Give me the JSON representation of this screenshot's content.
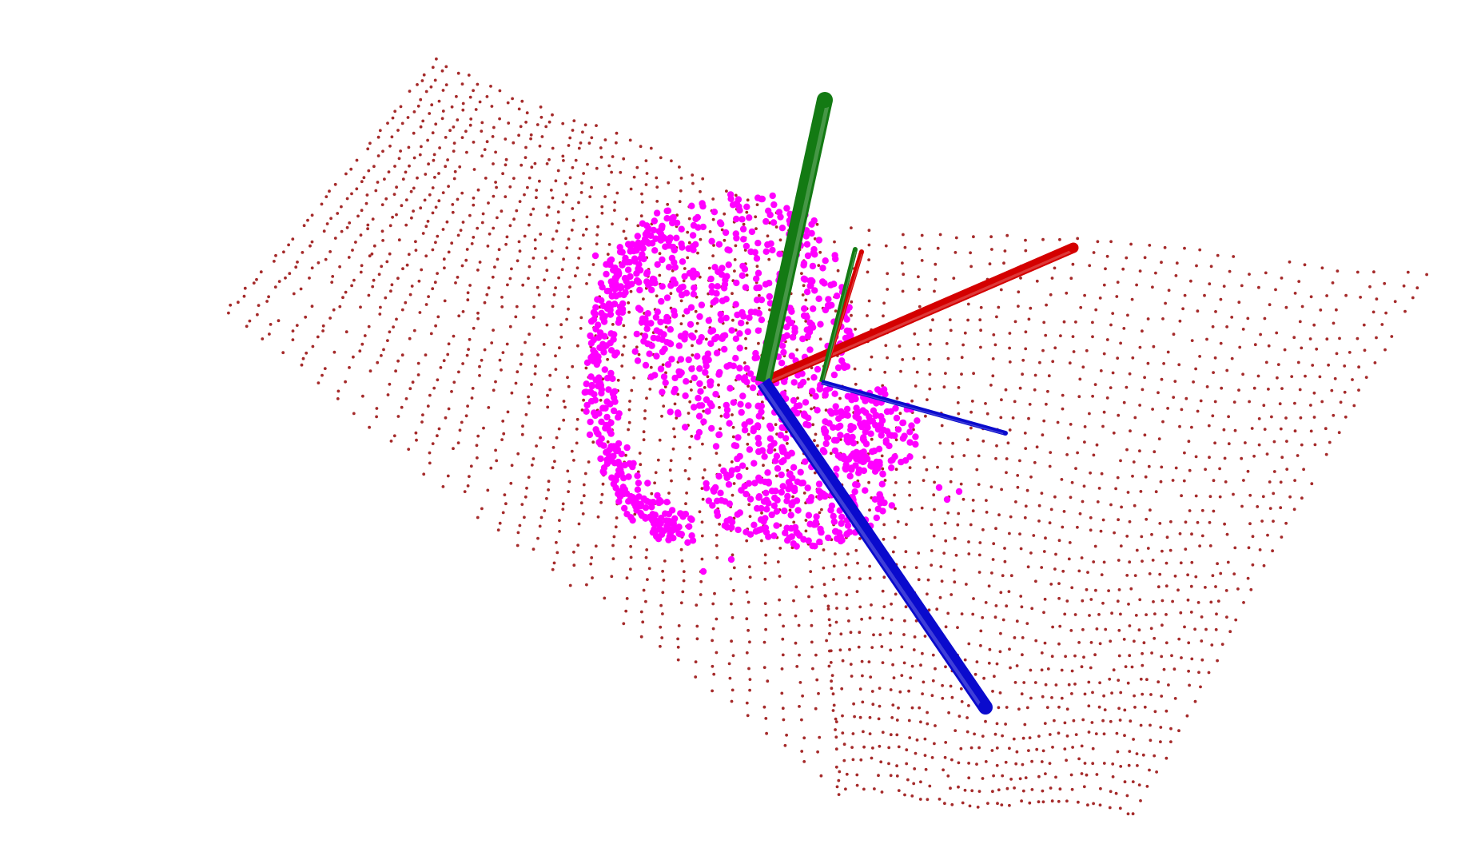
{
  "viewport": {
    "background": "#ffffff"
  },
  "point_clouds": [
    {
      "name": "scene-points",
      "color": "#a52a2a",
      "marker": "small-dot"
    },
    {
      "name": "object-points",
      "color": "#ff00ff",
      "marker": "large-dot"
    }
  ],
  "coordinate_frames": [
    {
      "name": "world-frame",
      "style": "thick-cylinders",
      "axes": [
        {
          "axis": "x",
          "color": "#d40000"
        },
        {
          "axis": "y",
          "color": "#137a13"
        },
        {
          "axis": "z",
          "color": "#0a0acd"
        }
      ]
    },
    {
      "name": "object-frame",
      "style": "thin-cylinders",
      "axes": [
        {
          "axis": "x",
          "color": "#d40000"
        },
        {
          "axis": "y",
          "color": "#137a13"
        },
        {
          "axis": "z",
          "color": "#0a0acd"
        }
      ]
    }
  ]
}
